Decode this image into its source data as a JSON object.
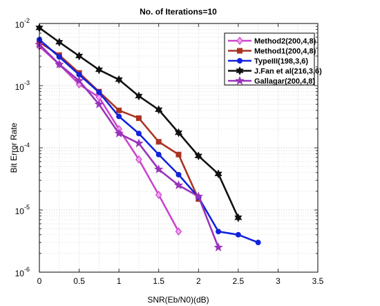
{
  "chart_data": {
    "type": "line",
    "title": "No. of Iterations=10",
    "xlabel": "SNR(Eb/N0)(dB)",
    "ylabel": "Bit Error Rate",
    "xlim": [
      0,
      3.5
    ],
    "ylim": [
      1e-06,
      0.01
    ],
    "yscale": "log",
    "grid": true,
    "legend_position": "top-right",
    "x_ticks": [
      "0",
      "0.5",
      "1",
      "1.5",
      "2",
      "2.5",
      "3",
      "3.5"
    ],
    "y_ticks": [
      {
        "base": "10",
        "exp": "-2"
      },
      {
        "base": "10",
        "exp": "-3"
      },
      {
        "base": "10",
        "exp": "-4"
      },
      {
        "base": "10",
        "exp": "-5"
      },
      {
        "base": "10",
        "exp": "-6"
      }
    ],
    "series": [
      {
        "name": "Method2(200,4,8)",
        "color": "#cc44cc",
        "marker": "diamond",
        "x": [
          0,
          0.25,
          0.5,
          0.75,
          1.0,
          1.25,
          1.5,
          1.75
        ],
        "y": [
          0.0043,
          0.0022,
          0.00105,
          0.00065,
          0.0002,
          6.5e-05,
          1.75e-05,
          4.5e-06
        ]
      },
      {
        "name": "Method1(200,4,8)",
        "color": "#aa3322",
        "marker": "square",
        "x": [
          0,
          0.25,
          0.5,
          0.75,
          1.0,
          1.25,
          1.5,
          1.75,
          2.0
        ],
        "y": [
          0.005,
          0.0031,
          0.0016,
          0.0008,
          0.0004,
          0.0003,
          0.000125,
          7.8e-05,
          1.5e-05
        ]
      },
      {
        "name": "TypeIII(198,3,6)",
        "color": "#1122dd",
        "marker": "circle",
        "x": [
          0,
          0.25,
          0.5,
          0.75,
          1.0,
          1.25,
          1.5,
          1.75,
          2.0,
          2.25,
          2.5,
          2.75
        ],
        "y": [
          0.0055,
          0.0029,
          0.0015,
          0.00078,
          0.00032,
          0.00017,
          7.8e-05,
          3.7e-05,
          1.6e-05,
          4.5e-06,
          4e-06,
          3e-06
        ]
      },
      {
        "name": "J.Fan et al(216,3,6)",
        "color": "#111111",
        "marker": "hexagram",
        "x": [
          0,
          0.25,
          0.5,
          0.75,
          1.0,
          1.25,
          1.5,
          1.75,
          2.0,
          2.25,
          2.5
        ],
        "y": [
          0.0085,
          0.005,
          0.003,
          0.0018,
          0.00125,
          0.00068,
          0.00041,
          0.000175,
          7.4e-05,
          3.8e-05,
          7.5e-06
        ]
      },
      {
        "name": "Gallagar(200,4,8)",
        "color": "#9933bb",
        "marker": "pentagram",
        "x": [
          0,
          0.25,
          0.5,
          0.75,
          1.0,
          1.25,
          1.5,
          1.75,
          2.0,
          2.25
        ],
        "y": [
          0.0046,
          0.0022,
          0.0012,
          0.0005,
          0.00017,
          0.000118,
          4.5e-05,
          2.5e-05,
          1.65e-05,
          2.5e-06
        ]
      }
    ]
  }
}
